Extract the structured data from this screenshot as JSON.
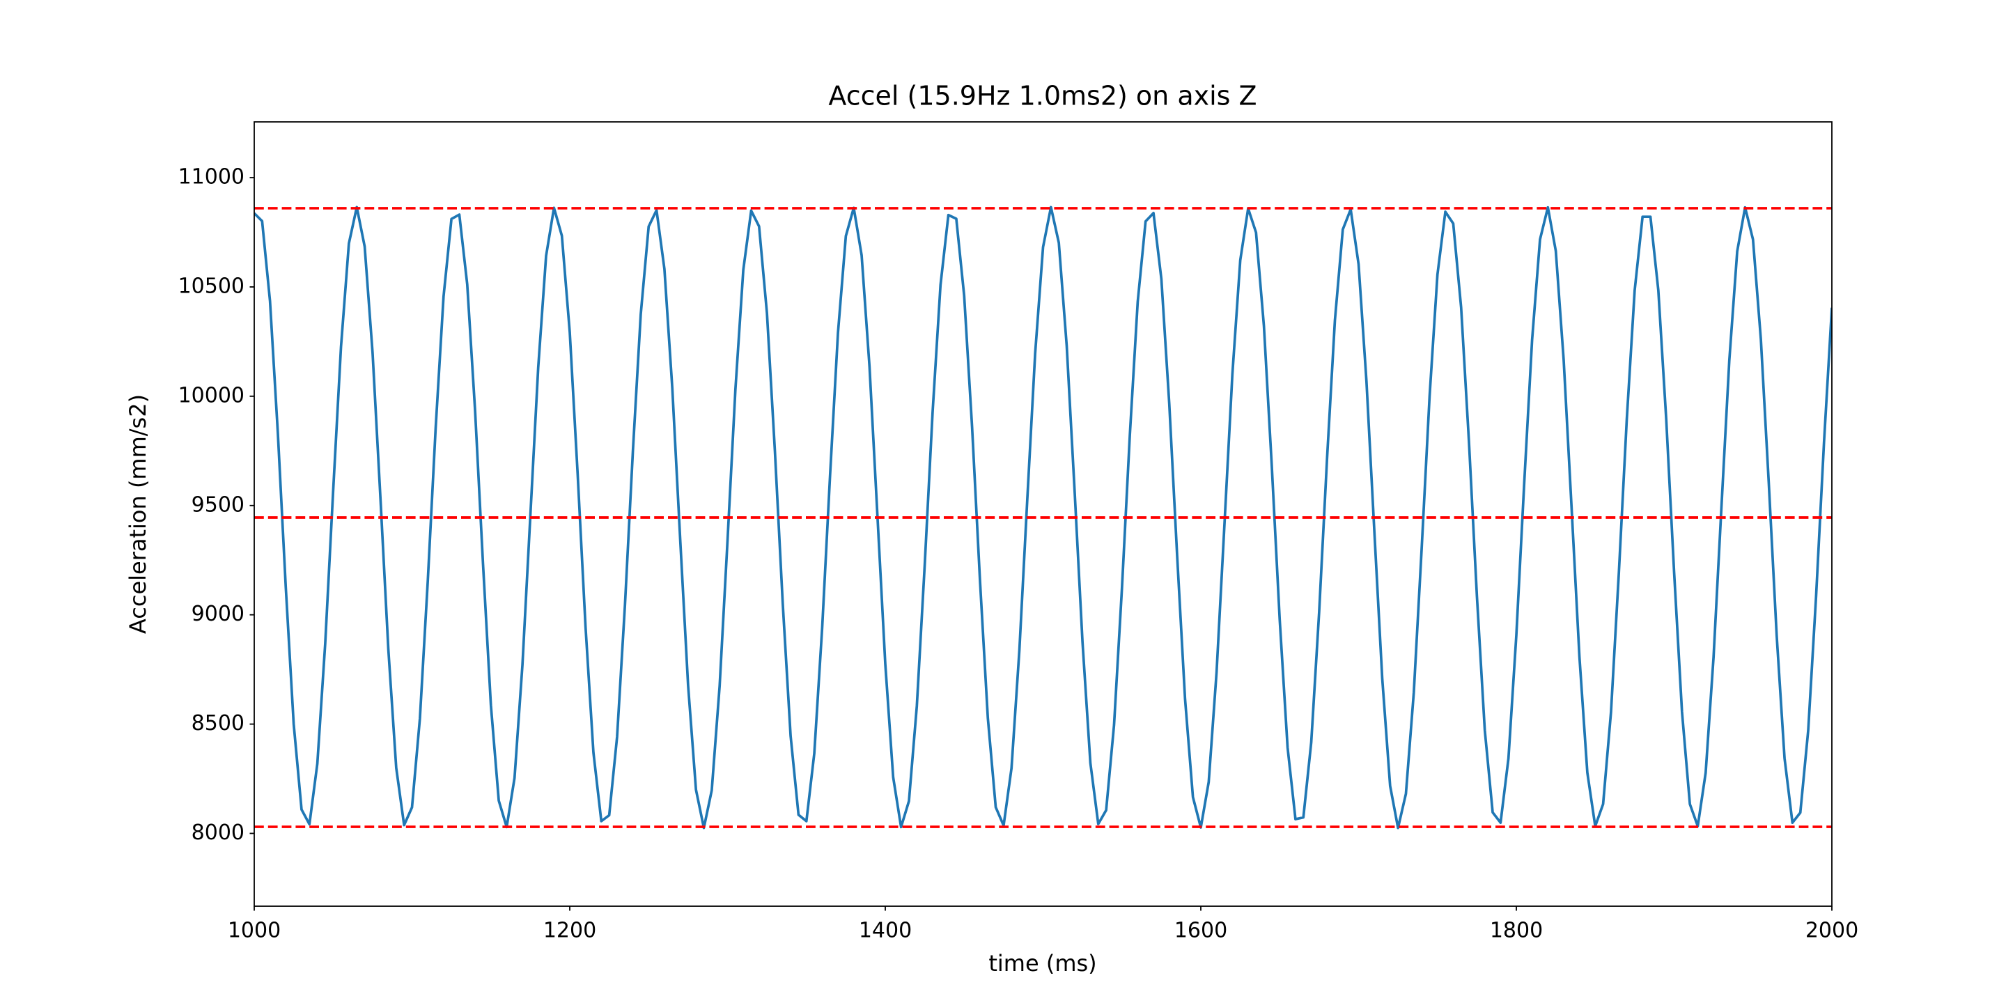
{
  "chart_data": {
    "type": "line",
    "title": "Accel (15.9Hz 1.0ms2) on axis Z",
    "x_label": "time (ms)",
    "y_label": "Acceleration (mm/s2)",
    "color": "#1f77b4",
    "x": [
      1000,
      1005,
      1010,
      1015,
      1020,
      1025,
      1030,
      1035,
      1040,
      1045,
      1050,
      1055,
      1060,
      1065,
      1070,
      1075,
      1080,
      1085,
      1090,
      1095,
      1100,
      1105,
      1110,
      1115,
      1120,
      1125,
      1130,
      1135,
      1140,
      1145,
      1150,
      1155,
      1160,
      1165,
      1170,
      1175,
      1180,
      1185,
      1190,
      1195,
      1200,
      1205,
      1210,
      1215,
      1220,
      1225,
      1230,
      1235,
      1240,
      1245,
      1250,
      1255,
      1260,
      1265,
      1270,
      1275,
      1280,
      1285,
      1290,
      1295,
      1300,
      1305,
      1310,
      1315,
      1320,
      1325,
      1330,
      1335,
      1340,
      1345,
      1350,
      1355,
      1360,
      1365,
      1370,
      1375,
      1380,
      1385,
      1390,
      1395,
      1400,
      1405,
      1410,
      1415,
      1420,
      1425,
      1430,
      1435,
      1440,
      1445,
      1450,
      1455,
      1460,
      1465,
      1470,
      1475,
      1480,
      1485,
      1490,
      1495,
      1500,
      1505,
      1510,
      1515,
      1520,
      1525,
      1530,
      1535,
      1540,
      1545,
      1550,
      1555,
      1560,
      1565,
      1570,
      1575,
      1580,
      1585,
      1590,
      1595,
      1600,
      1605,
      1610,
      1615,
      1620,
      1625,
      1630,
      1635,
      1640,
      1645,
      1650,
      1655,
      1660,
      1665,
      1670,
      1675,
      1680,
      1685,
      1690,
      1695,
      1700,
      1705,
      1710,
      1715,
      1720,
      1725,
      1730,
      1735,
      1740,
      1745,
      1750,
      1755,
      1760,
      1765,
      1770,
      1775,
      1780,
      1785,
      1790,
      1795,
      1800,
      1805,
      1810,
      1815,
      1820,
      1825,
      1830,
      1835,
      1840,
      1845,
      1850,
      1855,
      1860,
      1865,
      1870,
      1875,
      1880,
      1885,
      1890,
      1895,
      1900,
      1905,
      1910,
      1915,
      1920,
      1925,
      1930,
      1935,
      1940,
      1945,
      1950,
      1955,
      1960,
      1965,
      1970,
      1975,
      1980,
      1985,
      1990,
      1995,
      2000
    ],
    "values": [
      10837,
      10801,
      10435,
      9827,
      9125,
      8501,
      8109,
      8042,
      8319,
      8870,
      9563,
      10226,
      10699,
      10865,
      10685,
      10200,
      9533,
      8843,
      8300,
      8038,
      8119,
      8525,
      9154,
      9855,
      10456,
      10811,
      10831,
      10512,
      9933,
      9235,
      8587,
      8150,
      8029,
      8254,
      8770,
      9451,
      10131,
      10642,
      10862,
      10734,
      10293,
      9644,
      8945,
      8370,
      8056,
      8083,
      8442,
      9046,
      9747,
      10375,
      10776,
      10851,
      10582,
      10036,
      9345,
      8678,
      8200,
      8025,
      8197,
      8674,
      9340,
      10031,
      10578,
      10849,
      10777,
      10379,
      9753,
      9052,
      8445,
      8085,
      8056,
      8366,
      8941,
      9638,
      10289,
      10733,
      10862,
      10645,
      10135,
      9456,
      8775,
      8257,
      8029,
      8148,
      8583,
      9229,
      9928,
      10509,
      10829,
      10812,
      10460,
      9861,
      9160,
      8528,
      8120,
      8036,
      8298,
      8838,
      9527,
      10196,
      10682,
      10865,
      10702,
      10230,
      9568,
      8876,
      8322,
      8043,
      8106,
      8496,
      9120,
      9821,
      10432,
      10800,
      10838,
      10536,
      9966,
      9270,
      8616,
      8166,
      8027,
      8235,
      8739,
      9415,
      10100,
      10622,
      10859,
      10749,
      10321,
      9679,
      8979,
      8393,
      8065,
      8073,
      8417,
      9012,
      9713,
      10348,
      10763,
      10855,
      10604,
      10068,
      9381,
      8709,
      8217,
      8025,
      8181,
      8644,
      9304,
      9999,
      10557,
      10844,
      10790,
      10406,
      9787,
      9086,
      8472,
      8096,
      8049,
      8343,
      8907,
      9603,
      10259,
      10717,
      10864,
      10665,
      10166,
      9492,
      8807,
      8278,
      8033,
      8134,
      8555,
      9194,
      9894,
      10484,
      10821,
      10821,
      10484,
      9895,
      9195,
      8556,
      8134,
      8033,
      8277,
      8806,
      9492,
      10165,
      10663,
      10864,
      10717,
      10260,
      9604,
      8908,
      8344,
      8049,
      8095,
      8471,
      9085,
      9787,
      10405
    ],
    "hlines": [
      10860,
      9445,
      8030
    ],
    "hline_color": "#ff0000",
    "xlim": [
      1000,
      2000
    ],
    "xticks": [
      1000,
      1200,
      1400,
      1600,
      1800,
      2000
    ],
    "ylim": [
      7667,
      11255
    ],
    "yticks": [
      8000,
      8500,
      9000,
      9500,
      10000,
      10500,
      11000
    ],
    "grid": false
  }
}
